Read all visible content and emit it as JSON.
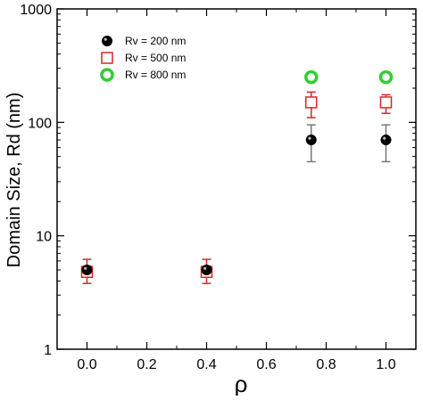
{
  "chart_data": {
    "type": "scatter",
    "title": "",
    "xlabel": "ρ",
    "ylabel": "Domain Size, Rd (nm)",
    "xlim": [
      -0.1,
      1.1
    ],
    "ylim": [
      1,
      1000
    ],
    "yscale": "log",
    "x_ticks": [
      0.0,
      0.2,
      0.4,
      0.6,
      0.8,
      1.0
    ],
    "x_tick_labels": [
      "0.0",
      "0.2",
      "0.4",
      "0.6",
      "0.8",
      "1.0"
    ],
    "y_ticks": [
      1,
      10,
      100,
      1000
    ],
    "y_tick_labels": [
      "1",
      "10",
      "100",
      "1000"
    ],
    "grid": false,
    "legend_position": "top-left",
    "series": [
      {
        "name": "Rv = 200 nm",
        "marker": "filled-circle",
        "color": "#000000",
        "points": [
          {
            "x": 0.0,
            "y": 5,
            "err_low": 4.6,
            "err_high": 5.4
          },
          {
            "x": 0.4,
            "y": 5,
            "err_low": 4.6,
            "err_high": 5.4
          },
          {
            "x": 0.75,
            "y": 70,
            "err_low": 45,
            "err_high": 95
          },
          {
            "x": 1.0,
            "y": 70,
            "err_low": 45,
            "err_high": 95
          }
        ]
      },
      {
        "name": "Rv = 500 nm",
        "marker": "open-square",
        "color": "#d62728",
        "points": [
          {
            "x": 0.0,
            "y": 4.8,
            "err_low": 3.8,
            "err_high": 6.2
          },
          {
            "x": 0.4,
            "y": 4.8,
            "err_low": 3.8,
            "err_high": 6.2
          },
          {
            "x": 0.75,
            "y": 150,
            "err_low": 110,
            "err_high": 185
          },
          {
            "x": 1.0,
            "y": 150,
            "err_low": 120,
            "err_high": 175
          }
        ]
      },
      {
        "name": "Rv = 800 nm",
        "marker": "open-circle",
        "color": "#33cc33",
        "points": [
          {
            "x": 0.75,
            "y": 250
          },
          {
            "x": 1.0,
            "y": 250
          }
        ]
      }
    ]
  }
}
